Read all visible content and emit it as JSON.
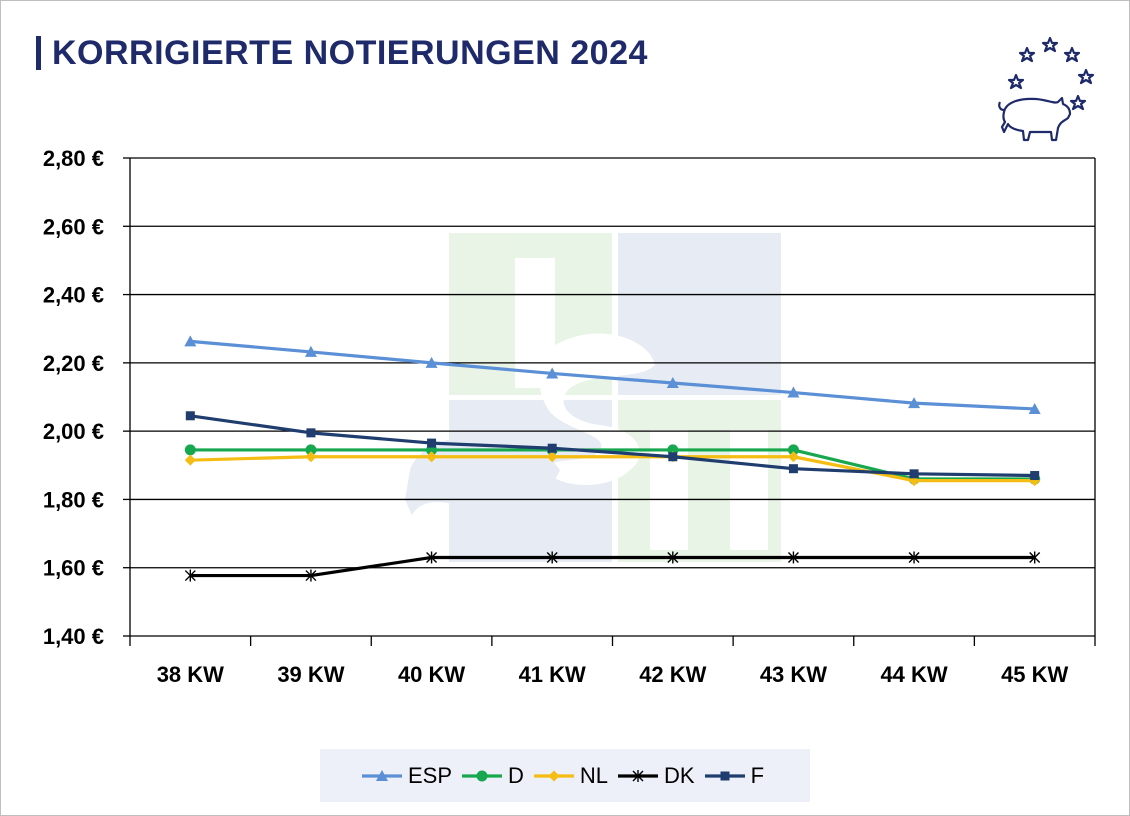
{
  "title": "KORRIGIERTE NOTIERUNGEN 2024",
  "colors": {
    "title": "#1f2a6b",
    "grid": "#000000",
    "legend_bg": "#edf0f8"
  },
  "logo": {
    "icon": "pig-with-stars-icon"
  },
  "chart_data": {
    "type": "line",
    "title": "KORRIGIERTE NOTIERUNGEN 2024",
    "xlabel": "",
    "ylabel": "",
    "categories": [
      "38 KW",
      "39 KW",
      "40 KW",
      "41 KW",
      "42 KW",
      "43 KW",
      "44 KW",
      "45 KW"
    ],
    "ylim": [
      1.4,
      2.8
    ],
    "ytick_step": 0.2,
    "ytick_labels": [
      "1,40 €",
      "1,60 €",
      "1,80 €",
      "2,00 €",
      "2,20 €",
      "2,40 €",
      "2,60 €",
      "2,80 €"
    ],
    "grid": true,
    "legend_position": "bottom",
    "series": [
      {
        "name": "ESP",
        "color": "#5b8fd6",
        "marker": "triangle",
        "values": [
          2.263,
          2.232,
          2.2,
          2.169,
          2.141,
          2.113,
          2.082,
          2.065
        ]
      },
      {
        "name": "D",
        "color": "#17a84f",
        "marker": "circle",
        "values": [
          1.945,
          1.945,
          1.945,
          1.945,
          1.945,
          1.945,
          1.86,
          1.86
        ]
      },
      {
        "name": "NL",
        "color": "#f5bd13",
        "marker": "diamond",
        "values": [
          1.915,
          1.925,
          1.925,
          1.925,
          1.925,
          1.925,
          1.855,
          1.855
        ]
      },
      {
        "name": "DK",
        "color": "#000000",
        "marker": "asterisk",
        "values": [
          1.577,
          1.577,
          1.63,
          1.63,
          1.63,
          1.63,
          1.63,
          1.63
        ]
      },
      {
        "name": "F",
        "color": "#1f3d6e",
        "marker": "square",
        "values": [
          2.045,
          1.995,
          1.965,
          1.95,
          1.925,
          1.89,
          1.875,
          1.87
        ]
      }
    ]
  }
}
